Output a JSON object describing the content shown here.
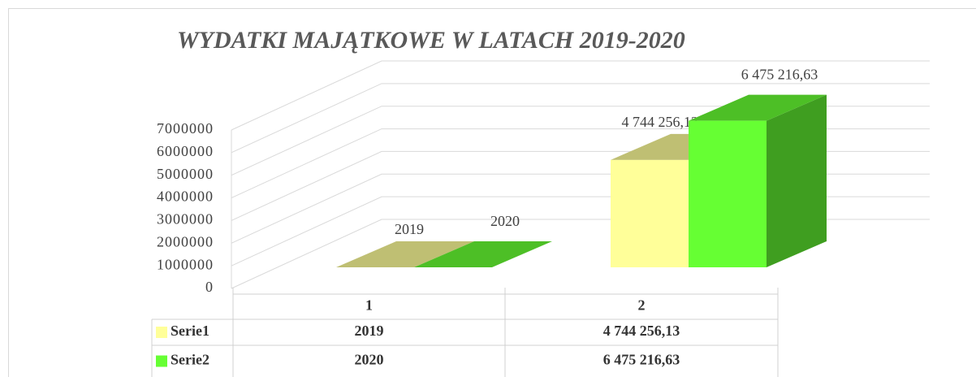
{
  "chart_data": {
    "type": "bar3d",
    "title": "WYDATKI MAJĄTKOWE W LATACH 2019-2020",
    "categories": [
      "1",
      "2"
    ],
    "series": [
      {
        "name": "Serie1",
        "color": "#ffff99",
        "values": [
          2019,
          4744256.13
        ],
        "value_labels": [
          "2019",
          "4 744 256,13"
        ]
      },
      {
        "name": "Serie2",
        "color": "#66ff33",
        "values": [
          2020,
          6475216.63
        ],
        "value_labels": [
          "2020",
          "6 475 216,63"
        ]
      }
    ],
    "ylim": [
      0,
      7000000
    ],
    "yticks": [
      0,
      1000000,
      2000000,
      3000000,
      4000000,
      5000000,
      6000000,
      7000000
    ],
    "grid": true,
    "data_table": true
  }
}
